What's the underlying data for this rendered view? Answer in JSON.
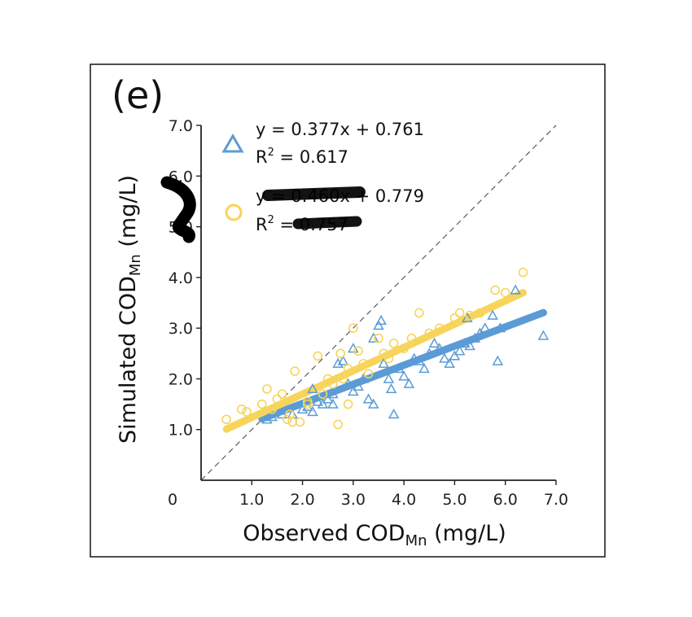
{
  "chart_data": {
    "type": "scatter",
    "panel_label": "(e)",
    "xlabel": "Observed COD",
    "xlabel_sub": "Mn",
    "xlabel_unit": " (mg/L)",
    "ylabel": "Simulated COD",
    "ylabel_sub": "Mn",
    "ylabel_unit": " (mg/L)",
    "xlim": [
      0,
      7.0
    ],
    "ylim": [
      0,
      7.0
    ],
    "x_ticks": [
      "0",
      "1.0",
      "2.0",
      "3.0",
      "4.0",
      "5.0",
      "6.0",
      "7.0"
    ],
    "y_ticks": [
      "1.0",
      "2.0",
      "3.0",
      "4.0",
      "5.0",
      "6.0",
      "7.0"
    ],
    "x_tick_values": [
      0,
      1,
      2,
      3,
      4,
      5,
      6,
      7
    ],
    "y_tick_values": [
      1,
      2,
      3,
      4,
      5,
      6,
      7
    ],
    "reference_line": "1:1 dashed",
    "colors": {
      "blue": "#5b9bd5",
      "yellow": "#f7d45a",
      "axis": "#222222",
      "ref": "#666666"
    },
    "series": [
      {
        "marker": "triangle",
        "color": "#5b9bd5",
        "equation": "y = 0.377x + 0.761",
        "r2_label": "R",
        "r2_value": " = 0.617",
        "fit": {
          "x_start": 1.2,
          "x_end": 6.75,
          "slope": 0.377,
          "intercept": 0.761
        },
        "points": [
          [
            1.3,
            1.2
          ],
          [
            1.4,
            1.25
          ],
          [
            1.6,
            1.3
          ],
          [
            1.8,
            1.3
          ],
          [
            2.0,
            1.4
          ],
          [
            2.1,
            1.45
          ],
          [
            2.2,
            1.35
          ],
          [
            2.3,
            1.55
          ],
          [
            2.4,
            1.5
          ],
          [
            2.5,
            1.6
          ],
          [
            2.6,
            1.7
          ],
          [
            2.7,
            2.3
          ],
          [
            2.8,
            2.35
          ],
          [
            2.9,
            1.9
          ],
          [
            3.0,
            1.75
          ],
          [
            3.1,
            1.85
          ],
          [
            3.2,
            2.0
          ],
          [
            3.3,
            1.6
          ],
          [
            3.4,
            1.5
          ],
          [
            3.5,
            3.05
          ],
          [
            3.55,
            3.15
          ],
          [
            3.6,
            2.3
          ],
          [
            3.7,
            2.0
          ],
          [
            3.75,
            1.8
          ],
          [
            3.8,
            1.3
          ],
          [
            3.9,
            2.2
          ],
          [
            4.0,
            2.05
          ],
          [
            4.1,
            1.9
          ],
          [
            4.2,
            2.4
          ],
          [
            4.3,
            2.35
          ],
          [
            4.5,
            2.5
          ],
          [
            4.6,
            2.7
          ],
          [
            4.7,
            2.6
          ],
          [
            4.8,
            2.4
          ],
          [
            4.9,
            2.3
          ],
          [
            5.0,
            2.45
          ],
          [
            5.1,
            2.55
          ],
          [
            5.2,
            2.7
          ],
          [
            5.3,
            2.65
          ],
          [
            5.4,
            2.8
          ],
          [
            5.5,
            2.9
          ],
          [
            5.6,
            3.0
          ],
          [
            5.75,
            3.25
          ],
          [
            5.85,
            2.35
          ],
          [
            5.9,
            3.0
          ],
          [
            6.2,
            3.75
          ],
          [
            6.75,
            2.85
          ],
          [
            3.4,
            2.8
          ],
          [
            2.6,
            1.5
          ],
          [
            2.2,
            1.8
          ],
          [
            3.0,
            2.6
          ],
          [
            4.4,
            2.2
          ],
          [
            5.25,
            3.2
          ]
        ]
      },
      {
        "marker": "circle",
        "color": "#f7d45a",
        "equation_prefix": "y",
        "equation_hidden": " = 0.460x",
        "equation_suffix": " + 0.779",
        "r2_label": "R",
        "r2_prefix": " = ",
        "r2_hidden": "0.757",
        "fit": {
          "x_start": 0.5,
          "x_end": 6.35,
          "slope": 0.46,
          "intercept": 0.779
        },
        "points": [
          [
            0.5,
            1.2
          ],
          [
            0.8,
            1.4
          ],
          [
            0.9,
            1.35
          ],
          [
            1.2,
            1.5
          ],
          [
            1.3,
            1.8
          ],
          [
            1.4,
            1.4
          ],
          [
            1.5,
            1.6
          ],
          [
            1.6,
            1.7
          ],
          [
            1.7,
            1.2
          ],
          [
            1.8,
            1.15
          ],
          [
            1.85,
            2.15
          ],
          [
            1.95,
            1.15
          ],
          [
            2.1,
            1.5
          ],
          [
            2.3,
            2.45
          ],
          [
            2.4,
            1.7
          ],
          [
            2.5,
            2.0
          ],
          [
            2.6,
            1.9
          ],
          [
            2.7,
            1.1
          ],
          [
            2.75,
            2.5
          ],
          [
            2.8,
            2.0
          ],
          [
            2.9,
            1.5
          ],
          [
            3.0,
            3.0
          ],
          [
            3.1,
            2.55
          ],
          [
            3.2,
            2.3
          ],
          [
            3.3,
            2.1
          ],
          [
            3.5,
            2.8
          ],
          [
            3.6,
            2.5
          ],
          [
            3.7,
            2.4
          ],
          [
            3.8,
            2.7
          ],
          [
            4.0,
            2.6
          ],
          [
            4.15,
            2.8
          ],
          [
            4.3,
            3.3
          ],
          [
            4.5,
            2.9
          ],
          [
            4.7,
            3.0
          ],
          [
            5.0,
            3.2
          ],
          [
            5.1,
            3.3
          ],
          [
            5.3,
            3.25
          ],
          [
            5.5,
            3.3
          ],
          [
            5.8,
            3.75
          ],
          [
            6.0,
            3.7
          ],
          [
            6.35,
            4.1
          ],
          [
            2.1,
            1.55
          ],
          [
            2.9,
            2.2
          ],
          [
            1.75,
            1.3
          ]
        ]
      }
    ]
  }
}
